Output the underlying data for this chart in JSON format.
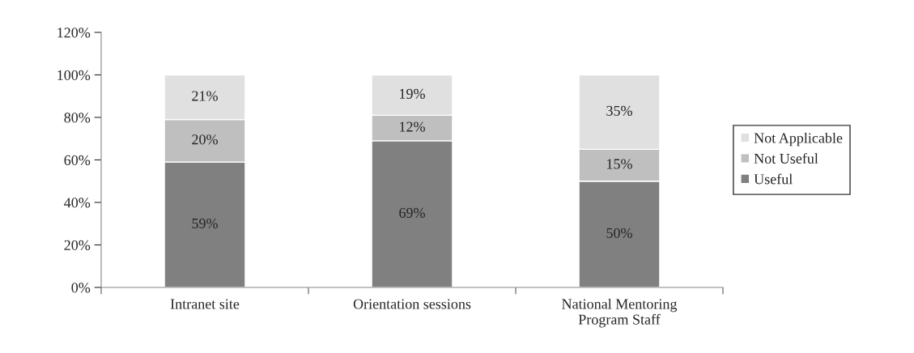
{
  "chart_data": {
    "type": "bar",
    "stacked": true,
    "categories": [
      "Intranet site",
      "Orientation sessions",
      "National Mentoring\nProgram Staff"
    ],
    "series": [
      {
        "name": "Useful",
        "color": "#808080",
        "values": [
          59,
          69,
          50
        ],
        "value_labels": [
          "59%",
          "69%",
          "50%"
        ]
      },
      {
        "name": "Not Useful",
        "color": "#bfbfbf",
        "values": [
          20,
          12,
          15
        ],
        "value_labels": [
          "20%",
          "12%",
          "15%"
        ]
      },
      {
        "name": "Not Applicable",
        "color": "#e0e0e0",
        "values": [
          21,
          19,
          35
        ],
        "value_labels": [
          "21%",
          "19%",
          "35%"
        ]
      }
    ],
    "ylim": [
      0,
      120
    ],
    "yticks": [
      {
        "value": 0,
        "label": "0%"
      },
      {
        "value": 20,
        "label": "20%"
      },
      {
        "value": 40,
        "label": "40%"
      },
      {
        "value": 60,
        "label": "60%"
      },
      {
        "value": 80,
        "label": "80%"
      },
      {
        "value": 100,
        "label": "100%"
      },
      {
        "value": 120,
        "label": "120%"
      }
    ],
    "grid": false,
    "legend": "right"
  }
}
